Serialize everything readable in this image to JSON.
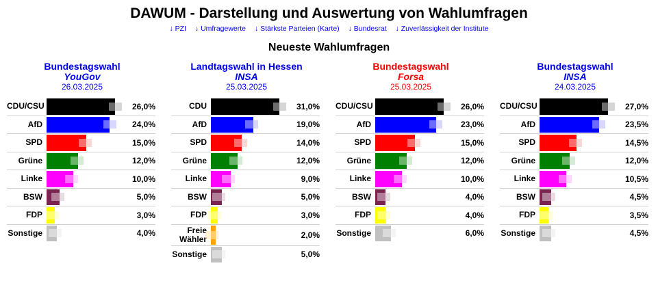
{
  "header": {
    "title": "DAWUM - Darstellung und Auswertung von Wahlumfragen",
    "links": [
      {
        "label": "↓ PZI"
      },
      {
        "label": "↓ Umfragewerte"
      },
      {
        "label": "↓ Stärkste Parteien (Karte)"
      },
      {
        "label": "↓ Bundesrat"
      },
      {
        "label": "↓ Zuverlässigkeit der Institute"
      }
    ],
    "subtitle": "Neueste Wahlumfragen"
  },
  "colors": {
    "link": "#0000ee",
    "heading_blue": "#0000ee",
    "heading_red": "#ff0000",
    "CDU": "#000000",
    "AfD": "#0000ff",
    "SPD": "#ff0000",
    "Gruene": "#008000",
    "Linke": "#ff00ff",
    "BSW": "#7b2450",
    "FDP": "#ffff00",
    "FW": "#ffa500",
    "Sonstige": "#c0c0c0"
  },
  "polls": [
    {
      "title": "Bundestagswahl",
      "institute": "YouGov",
      "date": "26.03.2025",
      "theme": "blue",
      "scale_max": 28.6,
      "parties": [
        {
          "name": "CDU/CSU",
          "value": "26,0%",
          "pct": 26.0,
          "prev": 28.6,
          "color_key": "CDU"
        },
        {
          "name": "AfD",
          "value": "24,0%",
          "pct": 24.0,
          "prev": 26.5,
          "color_key": "AfD"
        },
        {
          "name": "SPD",
          "value": "15,0%",
          "pct": 15.0,
          "prev": 17.1,
          "color_key": "SPD"
        },
        {
          "name": "Grüne",
          "value": "12,0%",
          "pct": 12.0,
          "prev": 14.0,
          "color_key": "Gruene"
        },
        {
          "name": "Linke",
          "value": "10,0%",
          "pct": 10.0,
          "prev": 11.9,
          "color_key": "Linke"
        },
        {
          "name": "BSW",
          "value": "5,0%",
          "pct": 5.0,
          "prev": 6.8,
          "color_key": "BSW"
        },
        {
          "name": "FDP",
          "value": "3,0%",
          "pct": 3.0,
          "prev": 4.7,
          "color_key": "FDP"
        },
        {
          "name": "Sonstige",
          "value": "4,0%",
          "pct": 4.0,
          "prev": 5.7,
          "color_key": "Sonstige"
        }
      ]
    },
    {
      "title": "Landtagswahl in Hessen",
      "institute": "INSA",
      "date": "25.03.2025",
      "theme": "blue",
      "scale_max": 34.0,
      "parties": [
        {
          "name": "CDU",
          "value": "31,0%",
          "pct": 31.0,
          "prev": 34.0,
          "color_key": "CDU"
        },
        {
          "name": "AfD",
          "value": "19,0%",
          "pct": 19.0,
          "prev": 21.4,
          "color_key": "AfD"
        },
        {
          "name": "SPD",
          "value": "14,0%",
          "pct": 14.0,
          "prev": 16.3,
          "color_key": "SPD"
        },
        {
          "name": "Grüne",
          "value": "12,0%",
          "pct": 12.0,
          "prev": 14.2,
          "color_key": "Gruene"
        },
        {
          "name": "Linke",
          "value": "9,0%",
          "pct": 9.0,
          "prev": 10.8,
          "color_key": "Linke"
        },
        {
          "name": "BSW",
          "value": "5,0%",
          "pct": 5.0,
          "prev": 6.6,
          "color_key": "BSW"
        },
        {
          "name": "FDP",
          "value": "3,0%",
          "pct": 3.0,
          "prev": 4.5,
          "color_key": "FDP"
        },
        {
          "name": "Freie Wähler",
          "value": "2,0%",
          "pct": 2.0,
          "prev": 3.3,
          "color_key": "FW"
        },
        {
          "name": "Sonstige",
          "value": "5,0%",
          "pct": 5.0,
          "prev": 6.6,
          "color_key": "Sonstige"
        }
      ]
    },
    {
      "title": "Bundestagswahl",
      "institute": "Forsa",
      "date": "25.03.2025",
      "theme": "red",
      "scale_max": 28.6,
      "parties": [
        {
          "name": "CDU/CSU",
          "value": "26,0%",
          "pct": 26.0,
          "prev": 28.6,
          "color_key": "CDU"
        },
        {
          "name": "AfD",
          "value": "23,0%",
          "pct": 23.0,
          "prev": 25.5,
          "color_key": "AfD"
        },
        {
          "name": "SPD",
          "value": "15,0%",
          "pct": 15.0,
          "prev": 17.1,
          "color_key": "SPD"
        },
        {
          "name": "Grüne",
          "value": "12,0%",
          "pct": 12.0,
          "prev": 14.0,
          "color_key": "Gruene"
        },
        {
          "name": "Linke",
          "value": "10,0%",
          "pct": 10.0,
          "prev": 11.9,
          "color_key": "Linke"
        },
        {
          "name": "BSW",
          "value": "4,0%",
          "pct": 4.0,
          "prev": 5.7,
          "color_key": "BSW"
        },
        {
          "name": "FDP",
          "value": "4,0%",
          "pct": 4.0,
          "prev": 5.7,
          "color_key": "FDP"
        },
        {
          "name": "Sonstige",
          "value": "6,0%",
          "pct": 6.0,
          "prev": 7.8,
          "color_key": "Sonstige"
        }
      ]
    },
    {
      "title": "Bundestagswahl",
      "institute": "INSA",
      "date": "24.03.2025",
      "theme": "blue",
      "scale_max": 29.7,
      "parties": [
        {
          "name": "CDU/CSU",
          "value": "27,0%",
          "pct": 27.0,
          "prev": 29.7,
          "color_key": "CDU"
        },
        {
          "name": "AfD",
          "value": "23,5%",
          "pct": 23.5,
          "prev": 25.9,
          "color_key": "AfD"
        },
        {
          "name": "SPD",
          "value": "14,5%",
          "pct": 14.5,
          "prev": 16.8,
          "color_key": "SPD"
        },
        {
          "name": "Grüne",
          "value": "12,0%",
          "pct": 12.0,
          "prev": 14.1,
          "color_key": "Gruene"
        },
        {
          "name": "Linke",
          "value": "10,5%",
          "pct": 10.5,
          "prev": 12.7,
          "color_key": "Linke"
        },
        {
          "name": "BSW",
          "value": "4,5%",
          "pct": 4.5,
          "prev": 6.2,
          "color_key": "BSW"
        },
        {
          "name": "FDP",
          "value": "3,5%",
          "pct": 3.5,
          "prev": 5.1,
          "color_key": "FDP"
        },
        {
          "name": "Sonstige",
          "value": "4,5%",
          "pct": 4.5,
          "prev": 6.2,
          "color_key": "Sonstige"
        }
      ]
    }
  ]
}
